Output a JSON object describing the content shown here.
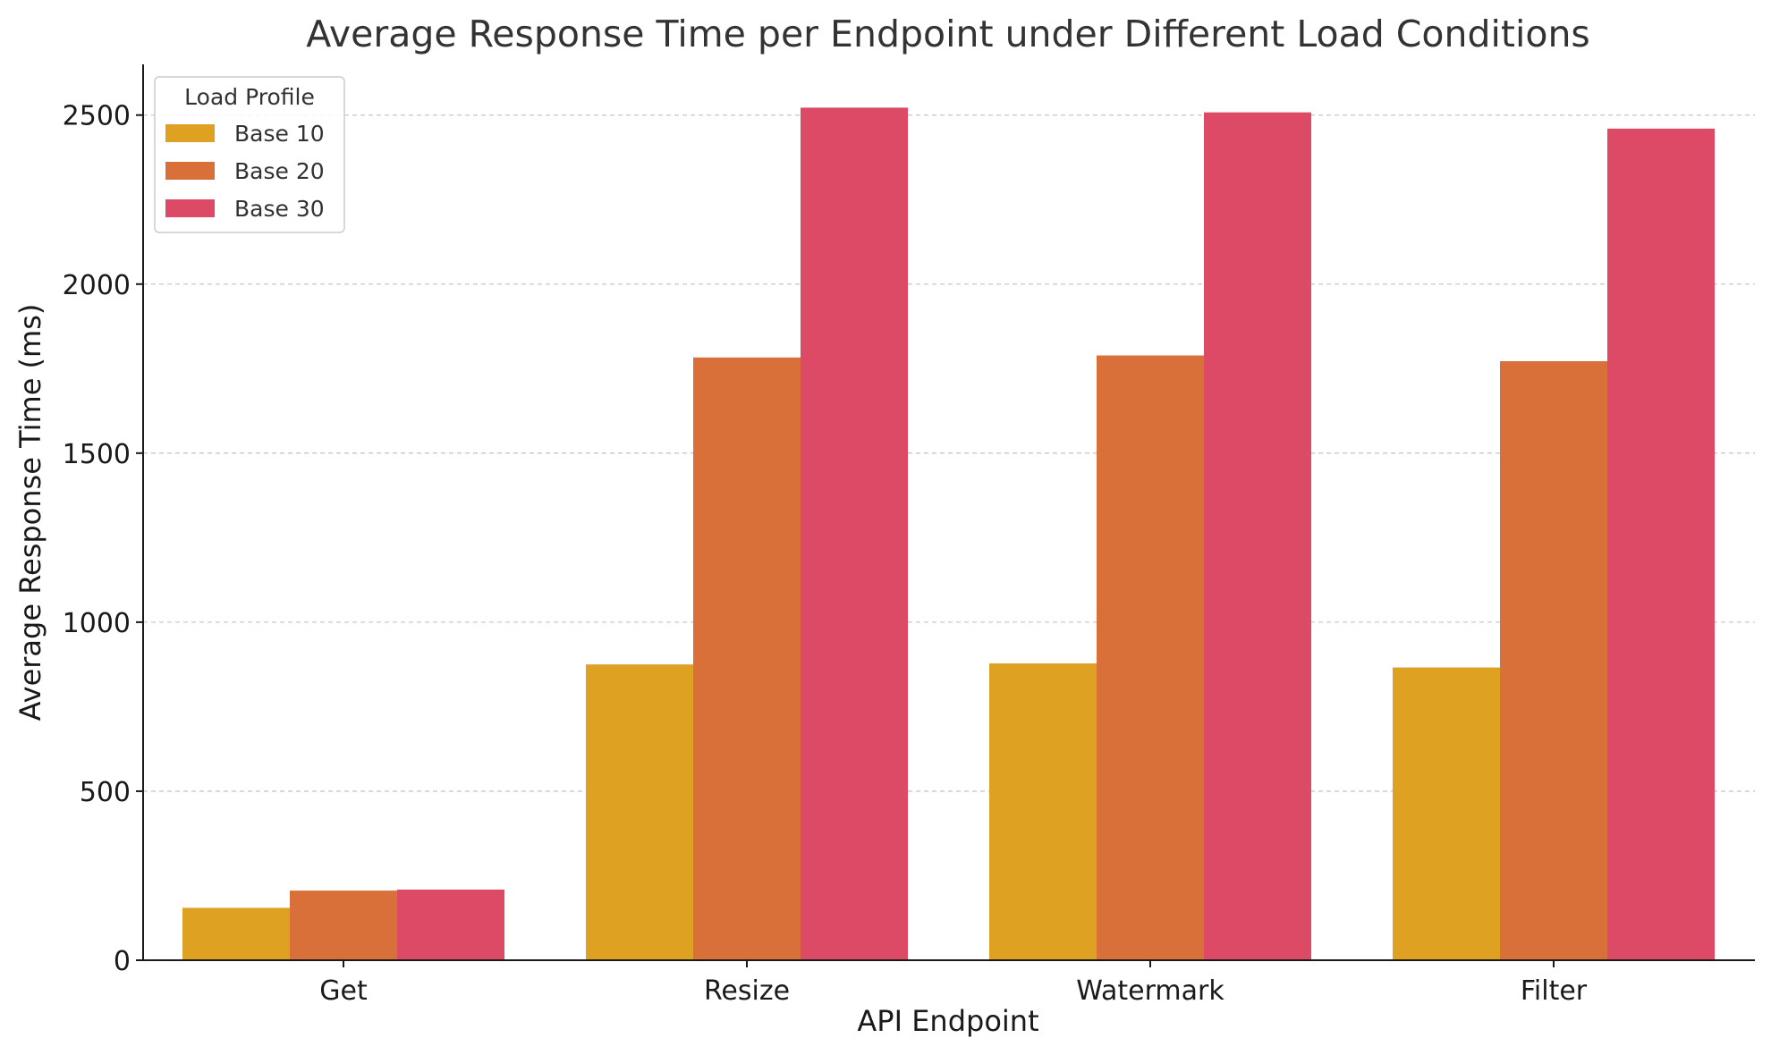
{
  "chart_data": {
    "type": "bar",
    "title": "Average Response Time per Endpoint under Different Load Conditions",
    "xlabel": "API Endpoint",
    "ylabel": "Average Response Time (ms)",
    "categories": [
      "Get",
      "Resize",
      "Watermark",
      "Filter"
    ],
    "series": [
      {
        "name": "Base 10",
        "color": "#DFA121",
        "values": [
          155,
          875,
          878,
          866
        ]
      },
      {
        "name": "Base 20",
        "color": "#D9703A",
        "values": [
          206,
          1783,
          1789,
          1772
        ]
      },
      {
        "name": "Base 30",
        "color": "#DC4A66",
        "values": [
          209,
          2522,
          2508,
          2460
        ]
      }
    ],
    "ylim": [
      0,
      2650
    ],
    "yticks": [
      0,
      500,
      1000,
      1500,
      2000,
      2500
    ],
    "grid": "horizontal dashed",
    "legend": {
      "title": "Load Profile",
      "placement": "top-left"
    }
  }
}
